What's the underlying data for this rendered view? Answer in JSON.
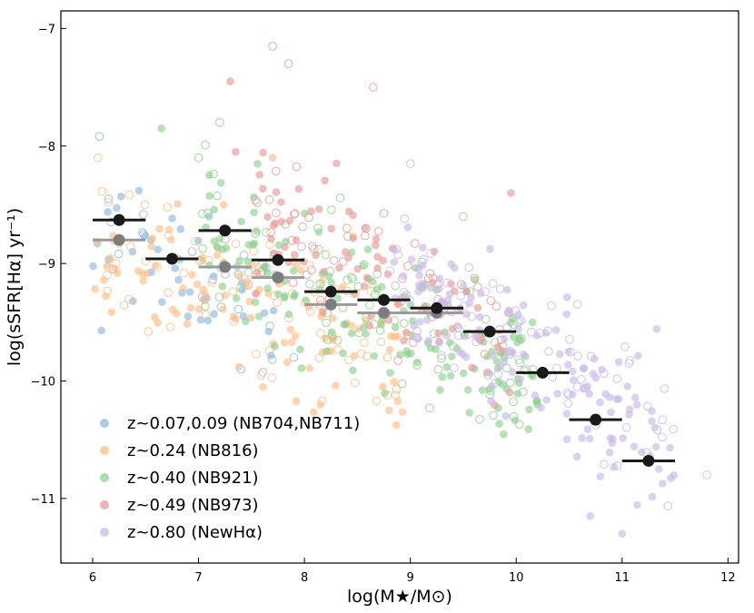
{
  "chart_data": {
    "type": "scatter",
    "xlabel": "log(M★/M⊙)",
    "ylabel": "log(sSFR[Hα] yr⁻¹)",
    "xlim": [
      5.7,
      12.1
    ],
    "ylim": [
      -11.55,
      -6.85
    ],
    "x_ticks": [
      6,
      7,
      8,
      9,
      10,
      11,
      12
    ],
    "y_ticks": [
      -7,
      -8,
      -9,
      -10,
      -11
    ],
    "x_tick_labels": [
      "6",
      "7",
      "8",
      "9",
      "10",
      "11",
      "12"
    ],
    "y_tick_labels": [
      "−7",
      "−8",
      "−9",
      "−10",
      "−11"
    ],
    "legend_position": "lower-left",
    "series": [
      {
        "name": "z~0.07,0.09 (NB704,NB711)",
        "color": "#8fb8de",
        "mass_range": [
          6.0,
          7.8
        ],
        "center": [
          6.8,
          -9.1
        ],
        "slope": -0.45,
        "scatter": 0.3,
        "count": 55,
        "outliers": [
          [
            6.15,
            -8.45
          ],
          [
            6.55,
            -8.8
          ],
          [
            6.9,
            -9.45
          ],
          [
            7.1,
            -8.6
          ],
          [
            7.4,
            -9.9
          ],
          [
            7.9,
            -9.8
          ]
        ]
      },
      {
        "name": "z~0.24 (NB816)",
        "color": "#fdbf85",
        "mass_range": [
          6.0,
          9.0
        ],
        "center": [
          7.6,
          -9.35
        ],
        "slope": -0.35,
        "scatter": 0.32,
        "count": 170,
        "outliers": [
          [
            6.05,
            -8.1
          ],
          [
            7.7,
            -8.1
          ],
          [
            8.15,
            -10.2
          ],
          [
            8.8,
            -10.25
          ]
        ]
      },
      {
        "name": "z~0.40 (NB921)",
        "color": "#8fd08f",
        "mass_range": [
          7.0,
          10.2
        ],
        "center": [
          8.3,
          -9.25
        ],
        "slope": -0.4,
        "scatter": 0.32,
        "count": 230,
        "outliers": [
          [
            6.65,
            -7.85
          ],
          [
            7.0,
            -8.1
          ],
          [
            9.5,
            -8.6
          ],
          [
            10.2,
            -10.2
          ]
        ]
      },
      {
        "name": "z~0.49 (NB973)",
        "color": "#e89a9a",
        "mass_range": [
          7.5,
          10.0
        ],
        "center": [
          8.8,
          -9.15
        ],
        "slope": -0.45,
        "scatter": 0.3,
        "count": 130,
        "outliers": [
          [
            7.7,
            -7.15
          ],
          [
            7.3,
            -7.45
          ],
          [
            7.85,
            -7.3
          ],
          [
            8.65,
            -7.5
          ],
          [
            7.2,
            -7.8
          ],
          [
            7.35,
            -8.05
          ],
          [
            9.95,
            -8.4
          ]
        ]
      },
      {
        "name": "z~0.80 (NewHα)",
        "color": "#c9b8e6",
        "mass_range": [
          8.8,
          11.5
        ],
        "center": [
          9.9,
          -9.7
        ],
        "slope": -0.55,
        "scatter": 0.3,
        "count": 200,
        "outliers": [
          [
            11.0,
            -11.3
          ],
          [
            11.8,
            -10.8
          ],
          [
            10.7,
            -11.15
          ],
          [
            9.0,
            -8.15
          ]
        ]
      }
    ],
    "binned_medians_black": {
      "x": [
        6.25,
        6.75,
        7.25,
        7.75,
        8.25,
        8.75,
        9.25,
        9.75,
        10.25,
        10.75,
        11.25
      ],
      "y": [
        -8.63,
        -8.96,
        -8.72,
        -8.97,
        -9.24,
        -9.31,
        -9.38,
        -9.58,
        -9.93,
        -10.33,
        -10.68
      ],
      "xerr": 0.25
    },
    "binned_medians_grey": {
      "x": [
        6.25,
        7.25,
        7.75,
        8.25,
        8.75,
        9.25
      ],
      "y": [
        -8.8,
        -9.03,
        -9.12,
        -9.35,
        -9.42,
        -9.42
      ],
      "xerr": 0.25
    }
  }
}
